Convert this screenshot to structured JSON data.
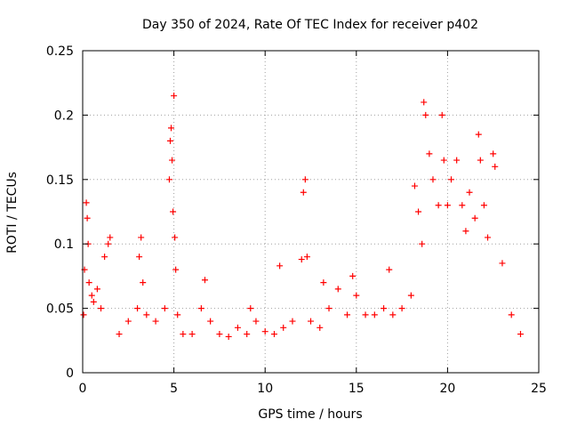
{
  "chart_data": {
    "type": "scatter",
    "title": "Day 350 of 2024, Rate Of TEC Index for receiver p402",
    "xlabel": "GPS time / hours",
    "ylabel": "ROTI / TECUs",
    "xlim": [
      0,
      25
    ],
    "ylim": [
      0,
      0.25
    ],
    "x_ticks": [
      "0",
      "5",
      "10",
      "15",
      "20",
      "25"
    ],
    "y_ticks": [
      "0",
      "0.05",
      "0.1",
      "0.15",
      "0.2",
      "0.25"
    ],
    "grid": true,
    "legend": "none",
    "marker": "+",
    "color": "#ff0000",
    "series": [
      {
        "x": [
          0.05,
          0.1,
          0.2,
          0.25,
          0.3,
          0.35,
          0.5,
          0.6,
          0.8,
          1.0,
          1.2,
          1.4,
          1.5,
          2.0,
          2.5,
          3.0,
          3.1,
          3.2,
          3.3,
          3.5,
          4.0,
          4.5,
          4.75,
          4.8,
          4.85,
          4.9,
          4.95,
          5.0,
          5.05,
          5.1,
          5.2,
          5.5,
          6.0,
          6.5,
          6.7,
          7.0,
          7.5,
          8.0,
          8.5,
          9.0,
          9.2,
          9.5,
          10.0,
          10.5,
          10.8,
          11.0,
          11.5,
          12.0,
          12.1,
          12.2,
          12.3,
          12.5,
          13.0,
          13.2,
          13.5,
          14.0,
          14.5,
          14.8,
          15.0,
          15.5,
          16.0,
          16.5,
          16.8,
          17.0,
          17.5,
          18.0,
          18.2,
          18.4,
          18.6,
          18.7,
          18.8,
          19.0,
          19.2,
          19.5,
          19.7,
          19.8,
          20.0,
          20.2,
          20.5,
          20.8,
          21.0,
          21.2,
          21.5,
          21.7,
          21.8,
          22.0,
          22.2,
          22.5,
          22.6,
          23.0,
          23.5,
          24.0
        ],
        "y": [
          0.045,
          0.08,
          0.132,
          0.12,
          0.1,
          0.07,
          0.06,
          0.055,
          0.065,
          0.05,
          0.09,
          0.1,
          0.105,
          0.03,
          0.04,
          0.05,
          0.09,
          0.105,
          0.07,
          0.045,
          0.04,
          0.05,
          0.15,
          0.18,
          0.19,
          0.165,
          0.125,
          0.215,
          0.105,
          0.08,
          0.045,
          0.03,
          0.03,
          0.05,
          0.072,
          0.04,
          0.03,
          0.028,
          0.035,
          0.03,
          0.05,
          0.04,
          0.032,
          0.03,
          0.083,
          0.035,
          0.04,
          0.088,
          0.14,
          0.15,
          0.09,
          0.04,
          0.035,
          0.07,
          0.05,
          0.065,
          0.045,
          0.075,
          0.06,
          0.045,
          0.045,
          0.05,
          0.08,
          0.045,
          0.05,
          0.06,
          0.145,
          0.125,
          0.1,
          0.21,
          0.2,
          0.17,
          0.15,
          0.13,
          0.2,
          0.165,
          0.13,
          0.15,
          0.165,
          0.13,
          0.11,
          0.14,
          0.12,
          0.185,
          0.165,
          0.13,
          0.105,
          0.17,
          0.16,
          0.085,
          0.045,
          0.03
        ]
      }
    ]
  }
}
